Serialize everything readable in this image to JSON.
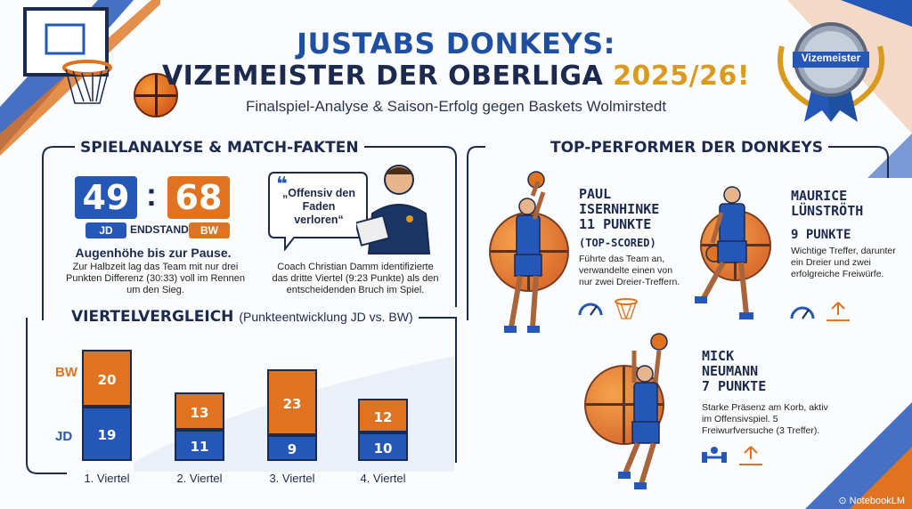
{
  "header": {
    "title_line1": "JUSTABS DONKEYS:",
    "title_line2": "VIZEMEISTER DER OBERLIGA",
    "title_year": "2025/26!",
    "subtitle": "Finalspiel-Analyse & Saison-Erfolg gegen Baskets Wolmirstedt",
    "medal_label": "Vizemeister"
  },
  "match": {
    "section_title": "SPIELANALYSE & MATCH-FAKTEN",
    "score_home": "49",
    "score_sep": ":",
    "score_away": "68",
    "team_home": "JD",
    "team_away": "BW",
    "result_label": "ENDSTAND",
    "headline": "Augenhöhe bis zur Pause.",
    "text": "Zur Halbzeit lag das Team mit nur drei Punkten Differenz (30:33) voll im Rennen um den Sieg.",
    "quote": "„Offensiv den Faden verloren“",
    "coach_text": "Coach Christian Damm identifizierte das dritte Viertel (9:23 Punkte) als den entscheidenden Bruch im Spiel."
  },
  "quarters": {
    "section_title": "VIERTELVERGLEICH",
    "section_subtitle": "(Punkteentwicklung JD vs. BW)",
    "axis_bw": "BW",
    "axis_jd": "JD",
    "items": [
      {
        "label": "1. Viertel",
        "jd": 19,
        "bw": 20
      },
      {
        "label": "2. Viertel",
        "jd": 11,
        "bw": 13
      },
      {
        "label": "3. Viertel",
        "jd": 9,
        "bw": 23
      },
      {
        "label": "4. Viertel",
        "jd": 10,
        "bw": 12
      }
    ]
  },
  "performers": {
    "section_title": "TOP-PERFORMER DER DONKEYS",
    "p1": {
      "name1": "PAUL",
      "name2": "ISERNHINKE",
      "points": "11 PUNKTE",
      "note": "(TOP-SCORED)",
      "desc": "Führte das Team an, verwandelte einen von nur zwei Dreier-Treffern."
    },
    "p2": {
      "name1": "MAURICE",
      "name2": "LÜNSTRÖTH",
      "points": "9 PUNKTE",
      "desc": "Wichtige Treffer, darunter ein Dreier und zwei erfolgreiche Freiwürfe."
    },
    "p3": {
      "name1": "MICK",
      "name2": "NEUMANN",
      "points": "7 PUNKTE",
      "desc": "Starke Präsenz am Korb, aktiv im Offensivspiel. 5 Freiwurfversuche (3 Treffer)."
    }
  },
  "footer": {
    "brand": "NotebookLM"
  },
  "colors": {
    "blue": "#2457b8",
    "orange": "#e0731f",
    "navy": "#1b2a4e",
    "gold": "#d99a1e"
  }
}
